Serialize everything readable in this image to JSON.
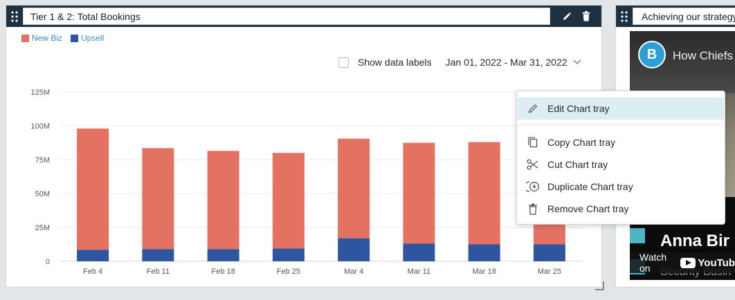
{
  "left_tray": {
    "title": "Tier 1 & 2:  Total Bookings",
    "legend": [
      {
        "label": "New Biz",
        "color": "#e37262"
      },
      {
        "label": "Upsell",
        "color": "#2e56a0"
      }
    ],
    "show_labels": "Show data labels",
    "date_range": "Jan 01, 2022 - Mar 31, 2022"
  },
  "right_tray": {
    "title": "Achieving our strategy",
    "video": {
      "title": "How Chiefs",
      "person_name": "Anna Bir",
      "person_sub": "Security Busin",
      "watch_on": "Watch on",
      "yt_label": "YouTub"
    }
  },
  "menu": {
    "items": [
      {
        "label": "Edit Chart tray",
        "icon": "pencil-icon"
      },
      {
        "label": "Copy Chart tray",
        "icon": "copy-icon"
      },
      {
        "label": "Cut Chart tray",
        "icon": "scissors-icon"
      },
      {
        "label": "Duplicate Chart tray",
        "icon": "duplicate-icon"
      },
      {
        "label": "Remove Chart tray",
        "icon": "trash-icon"
      }
    ]
  },
  "chart_data": {
    "type": "bar",
    "stacked": true,
    "categories": [
      "Feb 4",
      "Feb 11",
      "Feb 18",
      "Feb 25",
      "Mar 4",
      "Mar 11",
      "Mar 18",
      "Mar 25"
    ],
    "series": [
      {
        "name": "Upsell",
        "color": "#2e56a0",
        "values": [
          8.5,
          9,
          9,
          9.5,
          17,
          13,
          12.5,
          12.5
        ]
      },
      {
        "name": "New Biz",
        "color": "#e37262",
        "values": [
          89.5,
          74.5,
          72.5,
          70.5,
          73.5,
          74.5,
          75.5,
          75
        ]
      }
    ],
    "yticks": [
      "0",
      "25M",
      "50M",
      "75M",
      "100M",
      "125M"
    ],
    "ylim": [
      0,
      125
    ],
    "grid": true
  }
}
